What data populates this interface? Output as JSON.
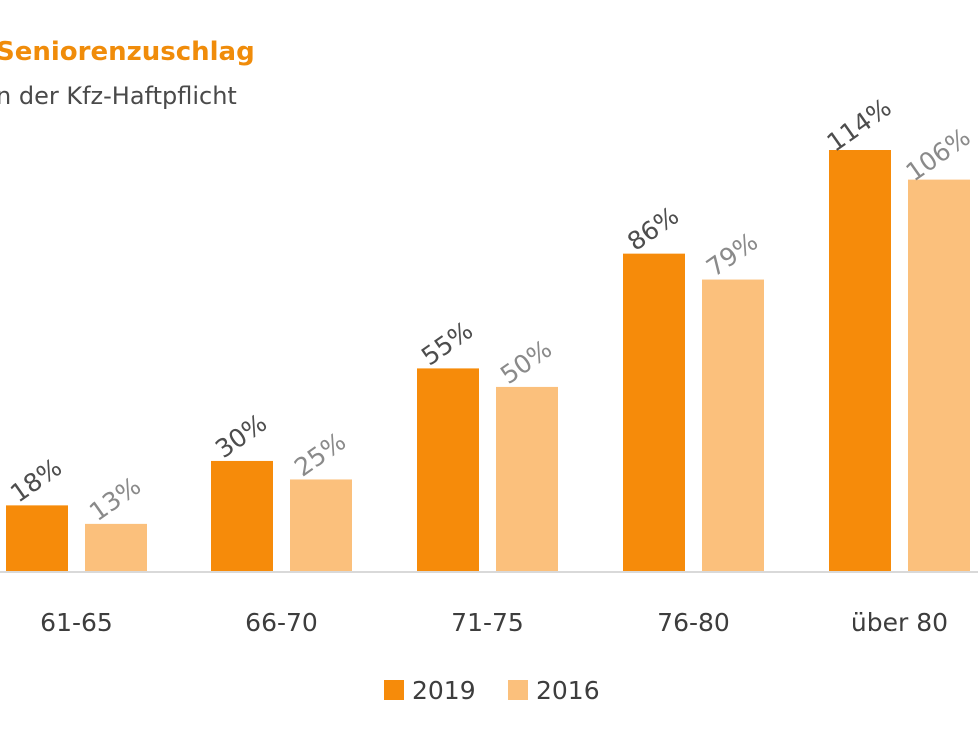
{
  "title": "Seniorenzuschlag",
  "subtitle": "n der Kfz-Haftpflicht",
  "colors": {
    "series_2019": "#f68b0a",
    "series_2016": "#fbc07c",
    "title": "#f08c0a",
    "label_2019": "#4d4d4d",
    "label_2016": "#8a8a8a",
    "baseline": "#d9d9d9"
  },
  "chart_data": {
    "type": "bar",
    "title": "Seniorenzuschlag",
    "subtitle": "n der Kfz-Haftpflicht",
    "categories": [
      "61-65",
      "66-70",
      "71-75",
      "76-80",
      "über 80"
    ],
    "series": [
      {
        "name": "2019",
        "values": [
          18,
          30,
          55,
          86,
          114
        ],
        "labels": [
          "18%",
          "30%",
          "55%",
          "86%",
          "114%"
        ]
      },
      {
        "name": "2016",
        "values": [
          13,
          25,
          50,
          79,
          106
        ],
        "labels": [
          "13%",
          "25%",
          "50%",
          "79%",
          "106%"
        ]
      }
    ],
    "xlabel": "",
    "ylabel": "",
    "ylim": [
      0,
      114
    ],
    "grid": false,
    "legend": "bottom"
  }
}
